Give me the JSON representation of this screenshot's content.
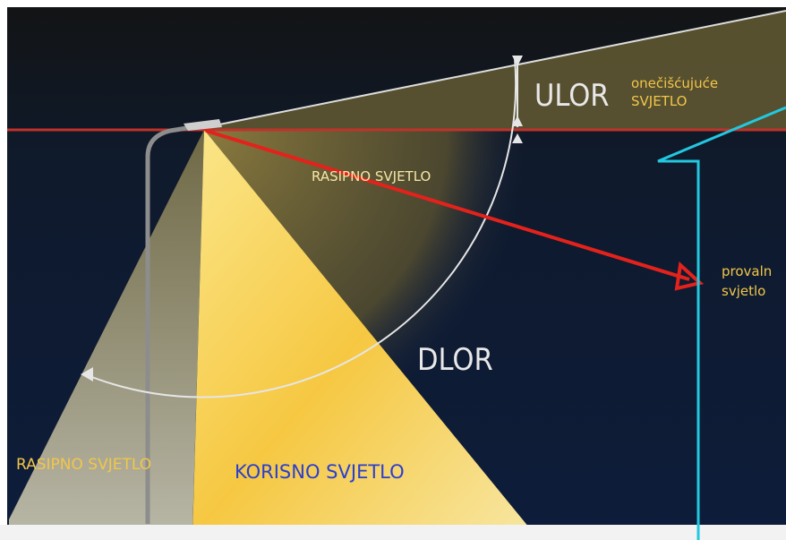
{
  "labels": {
    "ulor": "ULOR",
    "polluting_line1": "onečišćujuće",
    "polluting_line2": "SVJETLO",
    "spill_upper": "RASIPNO SVJETLO",
    "dlor": "DLOR",
    "trespass_line1": "provaln",
    "trespass_line2": "svjetlo",
    "spill_lower": "RASIPNO SVJETLO",
    "useful": "KORISNO SVJETLO"
  }
}
